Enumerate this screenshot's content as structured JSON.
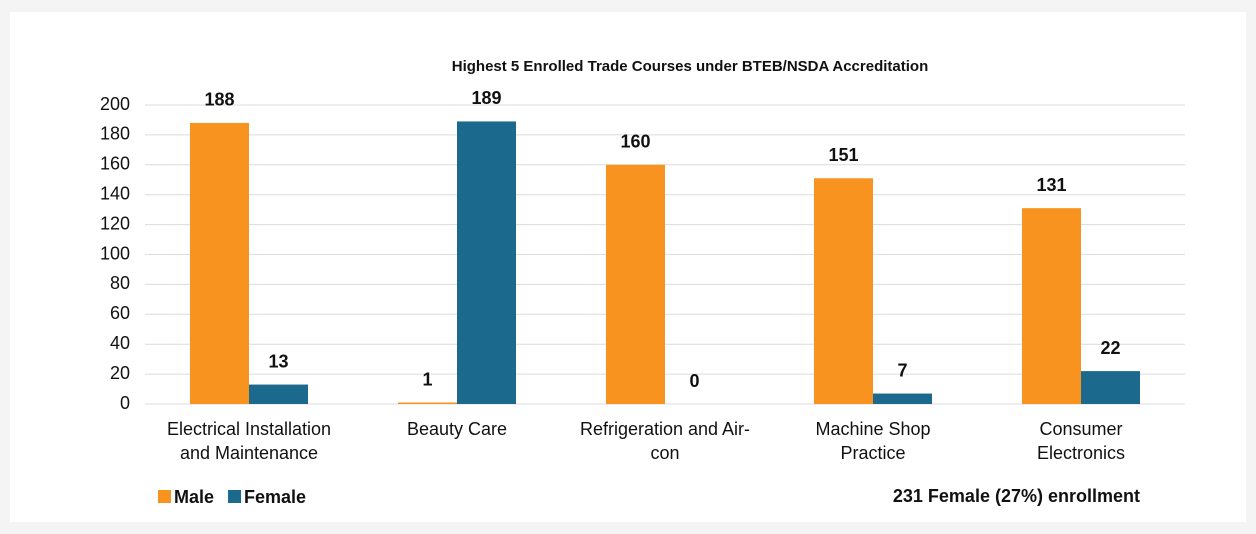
{
  "chart_data": {
    "type": "bar",
    "title": "Highest 5 Enrolled Trade Courses under BTEB/NSDA Accreditation",
    "categories": [
      "Electrical Installation\nand Maintenance",
      "Beauty Care",
      "Refrigeration and Air-\ncon",
      "Machine Shop\nPractice",
      "Consumer\nElectronics"
    ],
    "series": [
      {
        "name": "Male",
        "color": "#f7931e",
        "values": [
          188,
          1,
          160,
          151,
          131
        ]
      },
      {
        "name": "Female",
        "color": "#1b6a8e",
        "values": [
          13,
          189,
          0,
          7,
          22
        ]
      }
    ],
    "ylim": [
      0,
      200
    ],
    "yticks": [
      0,
      20,
      40,
      60,
      80,
      100,
      120,
      140,
      160,
      180,
      200
    ],
    "grid": true,
    "legend": "bottom-left",
    "annotation": "231 Female (27%) enrollment"
  }
}
